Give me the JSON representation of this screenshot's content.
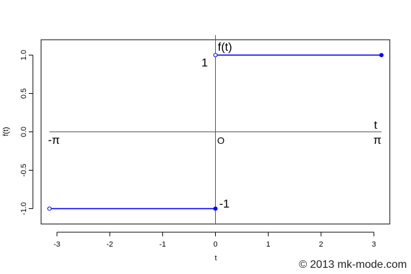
{
  "chart_data": {
    "type": "line",
    "xlabel": "t",
    "ylabel": "f(t)",
    "xlim": [
      -3.3,
      3.3
    ],
    "ylim": [
      -1.2,
      1.2
    ],
    "x_ticks": [
      -3,
      -2,
      -1,
      0,
      1,
      2,
      3
    ],
    "y_ticks": [
      -1.0,
      -0.5,
      0.0,
      0.5,
      1.0
    ],
    "x_tick_labels": [
      "-3",
      "-2",
      "-1",
      "0",
      "1",
      "2",
      "3"
    ],
    "y_tick_labels": [
      "-1.0",
      "-0.5",
      "0.0",
      "0.5",
      "1.0"
    ],
    "series": [
      {
        "x": [
          -3.1416,
          0
        ],
        "y": [
          -1,
          -1
        ],
        "open_marker_x": -3.1416,
        "filled_marker_x": 0
      },
      {
        "x": [
          0,
          3.1416
        ],
        "y": [
          1,
          1
        ],
        "open_marker_x": 0,
        "filled_marker_x": 3.1416
      }
    ],
    "line_color": "#0000ff",
    "annotations": {
      "f_axis_label": "f(t)",
      "t_axis_label": "t",
      "neg_pi": "-π",
      "pi": "π",
      "origin": "O",
      "one": "1",
      "minus_one": "-1"
    }
  },
  "copyright": "© 2013 mk-mode.com"
}
